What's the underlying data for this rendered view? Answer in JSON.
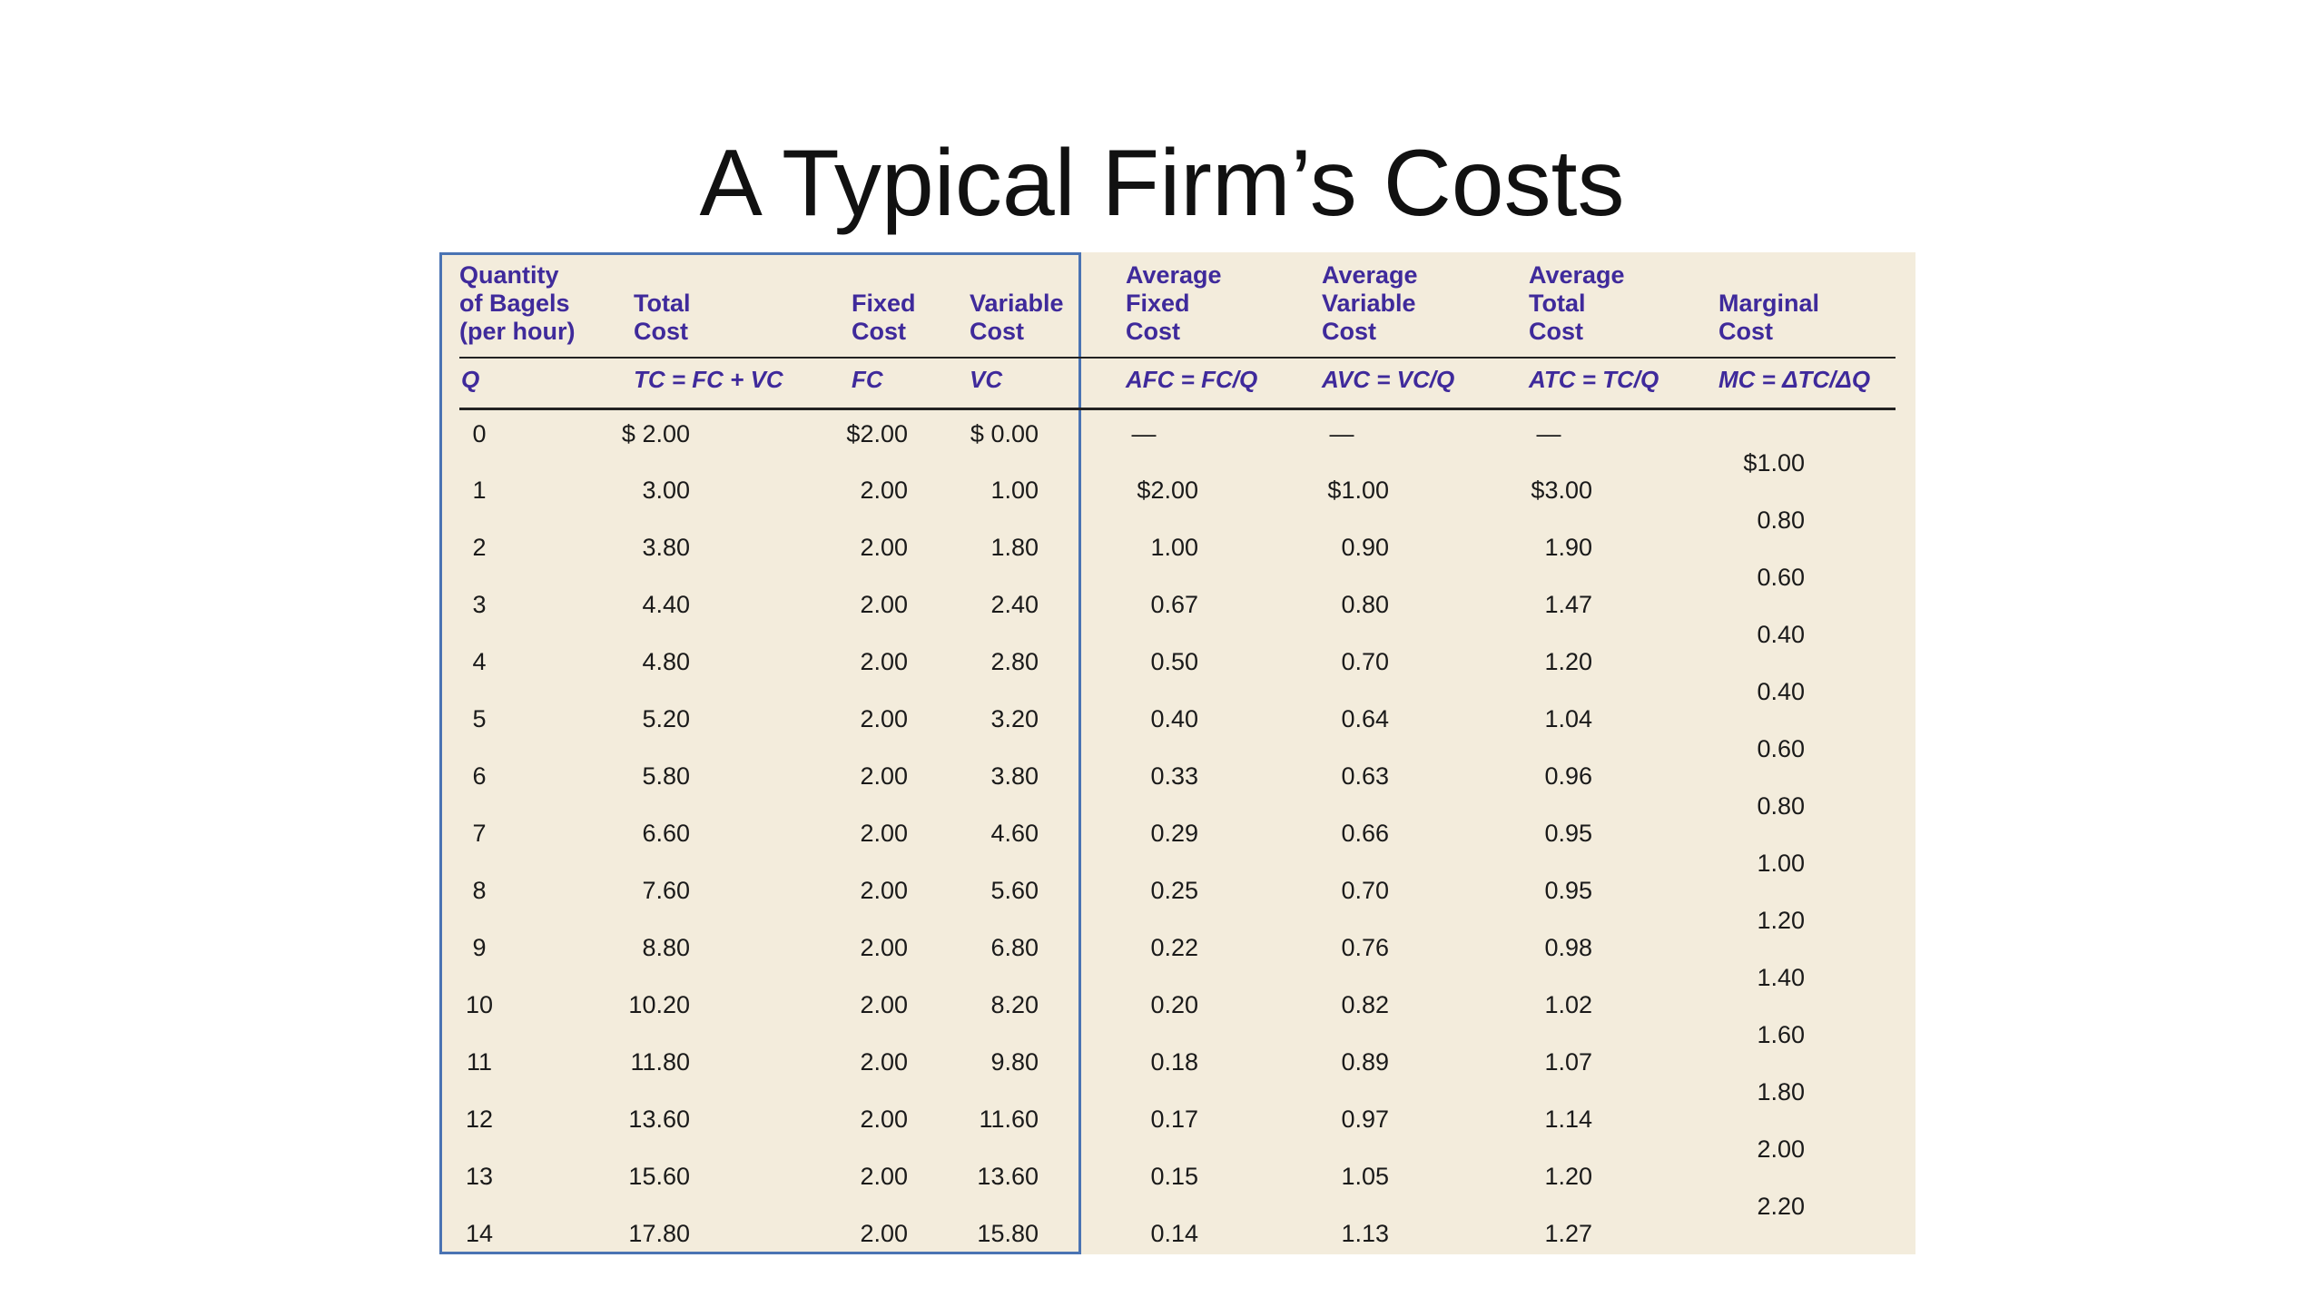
{
  "title": "A Typical Firm’s Costs",
  "headers": [
    "Quantity\nof Bagels\n(per hour)",
    "Total\nCost",
    "Fixed\nCost",
    "Variable\nCost",
    "Average\nFixed\nCost",
    "Average\nVariable\nCost",
    "Average\nTotal\nCost",
    "Marginal\nCost"
  ],
  "symbols": [
    "Q",
    "TC = FC + VC",
    "FC",
    "VC",
    "AFC = FC/Q",
    "AVC = VC/Q",
    "ATC = TC/Q",
    "MC = ΔTC/ΔQ"
  ],
  "rows": [
    [
      "0",
      "$ 2.00",
      "$2.00",
      "$ 0.00",
      "—",
      "—",
      "—"
    ],
    [
      "1",
      "3.00",
      "2.00",
      "1.00",
      "$2.00",
      "$1.00",
      "$3.00"
    ],
    [
      "2",
      "3.80",
      "2.00",
      "1.80",
      "1.00",
      "0.90",
      "1.90"
    ],
    [
      "3",
      "4.40",
      "2.00",
      "2.40",
      "0.67",
      "0.80",
      "1.47"
    ],
    [
      "4",
      "4.80",
      "2.00",
      "2.80",
      "0.50",
      "0.70",
      "1.20"
    ],
    [
      "5",
      "5.20",
      "2.00",
      "3.20",
      "0.40",
      "0.64",
      "1.04"
    ],
    [
      "6",
      "5.80",
      "2.00",
      "3.80",
      "0.33",
      "0.63",
      "0.96"
    ],
    [
      "7",
      "6.60",
      "2.00",
      "4.60",
      "0.29",
      "0.66",
      "0.95"
    ],
    [
      "8",
      "7.60",
      "2.00",
      "5.60",
      "0.25",
      "0.70",
      "0.95"
    ],
    [
      "9",
      "8.80",
      "2.00",
      "6.80",
      "0.22",
      "0.76",
      "0.98"
    ],
    [
      "10",
      "10.20",
      "2.00",
      "8.20",
      "0.20",
      "0.82",
      "1.02"
    ],
    [
      "11",
      "11.80",
      "2.00",
      "9.80",
      "0.18",
      "0.89",
      "1.07"
    ],
    [
      "12",
      "13.60",
      "2.00",
      "11.60",
      "0.17",
      "0.97",
      "1.14"
    ],
    [
      "13",
      "15.60",
      "2.00",
      "13.60",
      "0.15",
      "1.05",
      "1.20"
    ],
    [
      "14",
      "17.80",
      "2.00",
      "15.80",
      "0.14",
      "1.13",
      "1.27"
    ]
  ],
  "marginal_cost": [
    "$1.00",
    "0.80",
    "0.60",
    "0.40",
    "0.40",
    "0.60",
    "0.80",
    "1.00",
    "1.20",
    "1.40",
    "1.60",
    "1.80",
    "2.00",
    "2.20"
  ],
  "colors": {
    "header_text": "#3f2a9b",
    "table_background": "#f3ecdc",
    "highlight_border": "#4a73b3"
  }
}
